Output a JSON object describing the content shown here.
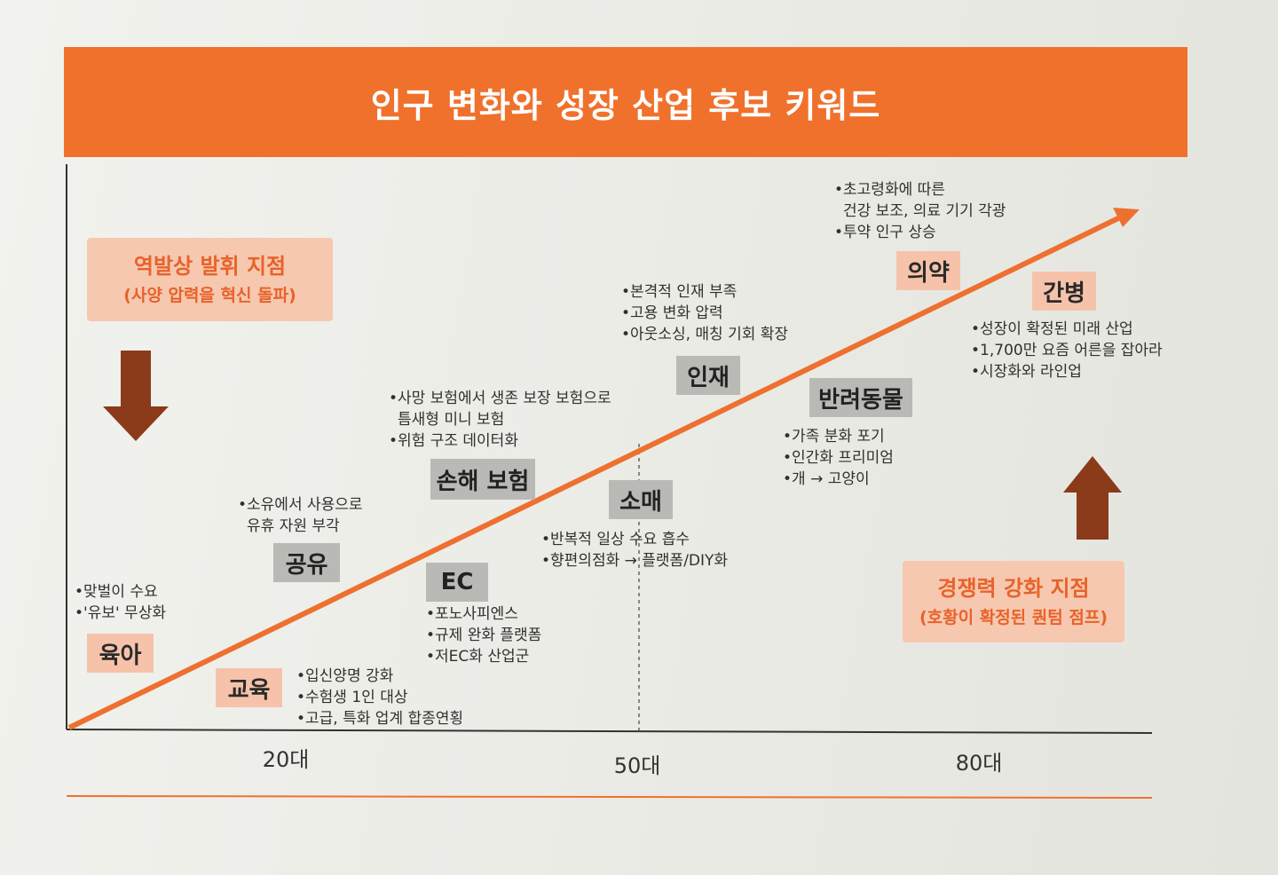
{
  "title": "인구 변화와 성장 산업 후보 키워드",
  "axis_ticks": [
    "20대",
    "50대",
    "80대"
  ],
  "callouts": {
    "reverse": {
      "title": "역발상 발휘 지점",
      "subtitle": "(사양 압력을 혁신 돌파)"
    },
    "compete": {
      "title": "경쟁력 강화 지점",
      "subtitle": "(호황이 확정된 퀀텀 점프)"
    }
  },
  "keywords": {
    "yuga": {
      "label": "육아",
      "notes": [
        "•맞벌이 수요",
        "•'유보' 무상화"
      ]
    },
    "gyoyuk": {
      "label": "교육",
      "notes": [
        "•입신양명 강화",
        "•수험생 1인 대상",
        "•고급, 특화 업계 합종연횡"
      ]
    },
    "gongyu": {
      "label": "공유",
      "notes": [
        "•소유에서 사용으로",
        "유휴 자원 부각"
      ]
    },
    "ec": {
      "label": "EC",
      "notes": [
        "•포노사피엔스",
        "•규제 완화 플랫폼",
        "•저EC화 산업군"
      ]
    },
    "sonhae": {
      "label": "손해 보험",
      "notes": [
        "•사망 보험에서 생존 보장 보험으로",
        "틈새형 미니 보험",
        "•위험 구조 데이터화"
      ]
    },
    "somae": {
      "label": "소매",
      "notes": [
        "•반복적 일상 수요 흡수",
        "•향편의점화 → 플랫폼/DIY화"
      ]
    },
    "injae": {
      "label": "인재",
      "notes": [
        "•본격적 인재 부족",
        "•고용 변화 압력",
        "•아웃소싱, 매칭 기회 확장"
      ]
    },
    "banryeo": {
      "label": "반려동물",
      "notes": [
        "•가족 분화 포기",
        "•인간화 프리미엄",
        "•개 → 고양이"
      ]
    },
    "uiyak": {
      "label": "의약",
      "notes": [
        "•초고령화에 따른",
        "건강 보조, 의료 기기 각광",
        "•투약 인구 상승"
      ]
    },
    "ganbyeong": {
      "label": "간병",
      "notes": [
        "•성장이 확정된 미래 산업",
        "•1,700만 요즘 어른을 잡아라",
        "•시장화와 라인업"
      ]
    }
  },
  "colors": {
    "accent": "#f0712c",
    "arrow": "#8b3a1a",
    "gray_box": "#b9b9b5",
    "peach_box": "#f6c3aa"
  }
}
